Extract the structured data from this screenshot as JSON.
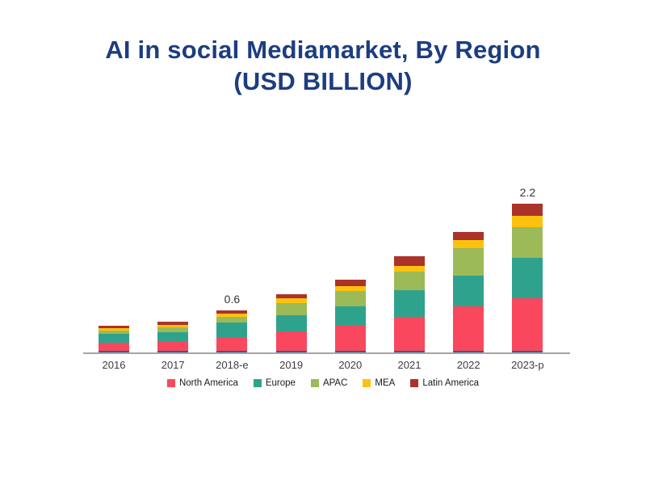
{
  "title": {
    "line1": "AI in social Mediamarket, By Region",
    "line2": "(USD BILLION)",
    "color": "#1c3d80"
  },
  "chart_data": {
    "type": "bar",
    "subtype": "stacked",
    "title": "AI in social Mediamarket, By Region (USD BILLION)",
    "unit": "USD Billion",
    "categories": [
      "2016",
      "2017",
      "2018-e",
      "2019",
      "2020",
      "2021",
      "2022",
      "2023-p"
    ],
    "series": [
      {
        "name": "North America",
        "color": "#f9485d",
        "values": [
          0.12,
          0.15,
          0.19,
          0.29,
          0.37,
          0.51,
          0.66,
          0.78
        ]
      },
      {
        "name": "Europe",
        "color": "#2fa28d",
        "values": [
          0.13,
          0.13,
          0.23,
          0.24,
          0.29,
          0.4,
          0.47,
          0.61
        ]
      },
      {
        "name": "APAC",
        "color": "#9cba58",
        "values": [
          0.05,
          0.07,
          0.09,
          0.18,
          0.23,
          0.27,
          0.4,
          0.46
        ]
      },
      {
        "name": "MEA",
        "color": "#fdc20f",
        "values": [
          0.04,
          0.04,
          0.05,
          0.08,
          0.08,
          0.09,
          0.13,
          0.17
        ]
      },
      {
        "name": "Latin America",
        "color": "#ab3329",
        "values": [
          0.04,
          0.05,
          0.04,
          0.06,
          0.1,
          0.14,
          0.12,
          0.18
        ]
      }
    ],
    "totals": [
      0.38,
      0.44,
      0.6,
      0.85,
      1.07,
      1.41,
      1.78,
      2.2
    ],
    "bar_value_labels": [
      "",
      "",
      "0.6",
      "",
      "",
      "",
      "",
      "2.2"
    ],
    "base_strip_color": "#2a5d9c",
    "axis_line_color": "#a5a5a5",
    "xlabel": "",
    "ylabel": "",
    "ylim": [
      0,
      2.4
    ],
    "grid": false,
    "legend_position": "bottom"
  }
}
